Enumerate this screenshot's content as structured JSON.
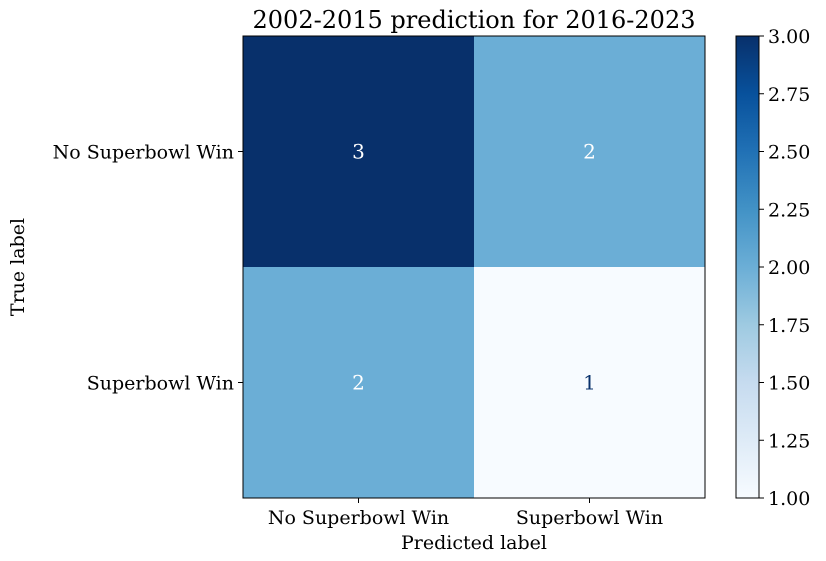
{
  "chart_data": {
    "type": "heatmap",
    "title": "2002-2015 prediction for 2016-2023",
    "xlabel": "Predicted label",
    "ylabel": "True label",
    "x_categories": [
      "No Superbowl Win",
      "Superbowl Win"
    ],
    "y_categories": [
      "No Superbowl Win",
      "Superbowl Win"
    ],
    "values": [
      [
        3,
        2
      ],
      [
        2,
        1
      ]
    ],
    "colormap": "Blues",
    "colorbar": {
      "range": [
        1.0,
        3.0
      ],
      "ticks": [
        "1.00",
        "1.25",
        "1.50",
        "1.75",
        "2.00",
        "2.25",
        "2.50",
        "2.75",
        "3.00"
      ]
    },
    "colors": {
      "min": "#f7fbff",
      "mid": "#6baed6",
      "max": "#08306b",
      "text_on_dark": "#ffffff",
      "text_on_light": "#08306b"
    }
  }
}
